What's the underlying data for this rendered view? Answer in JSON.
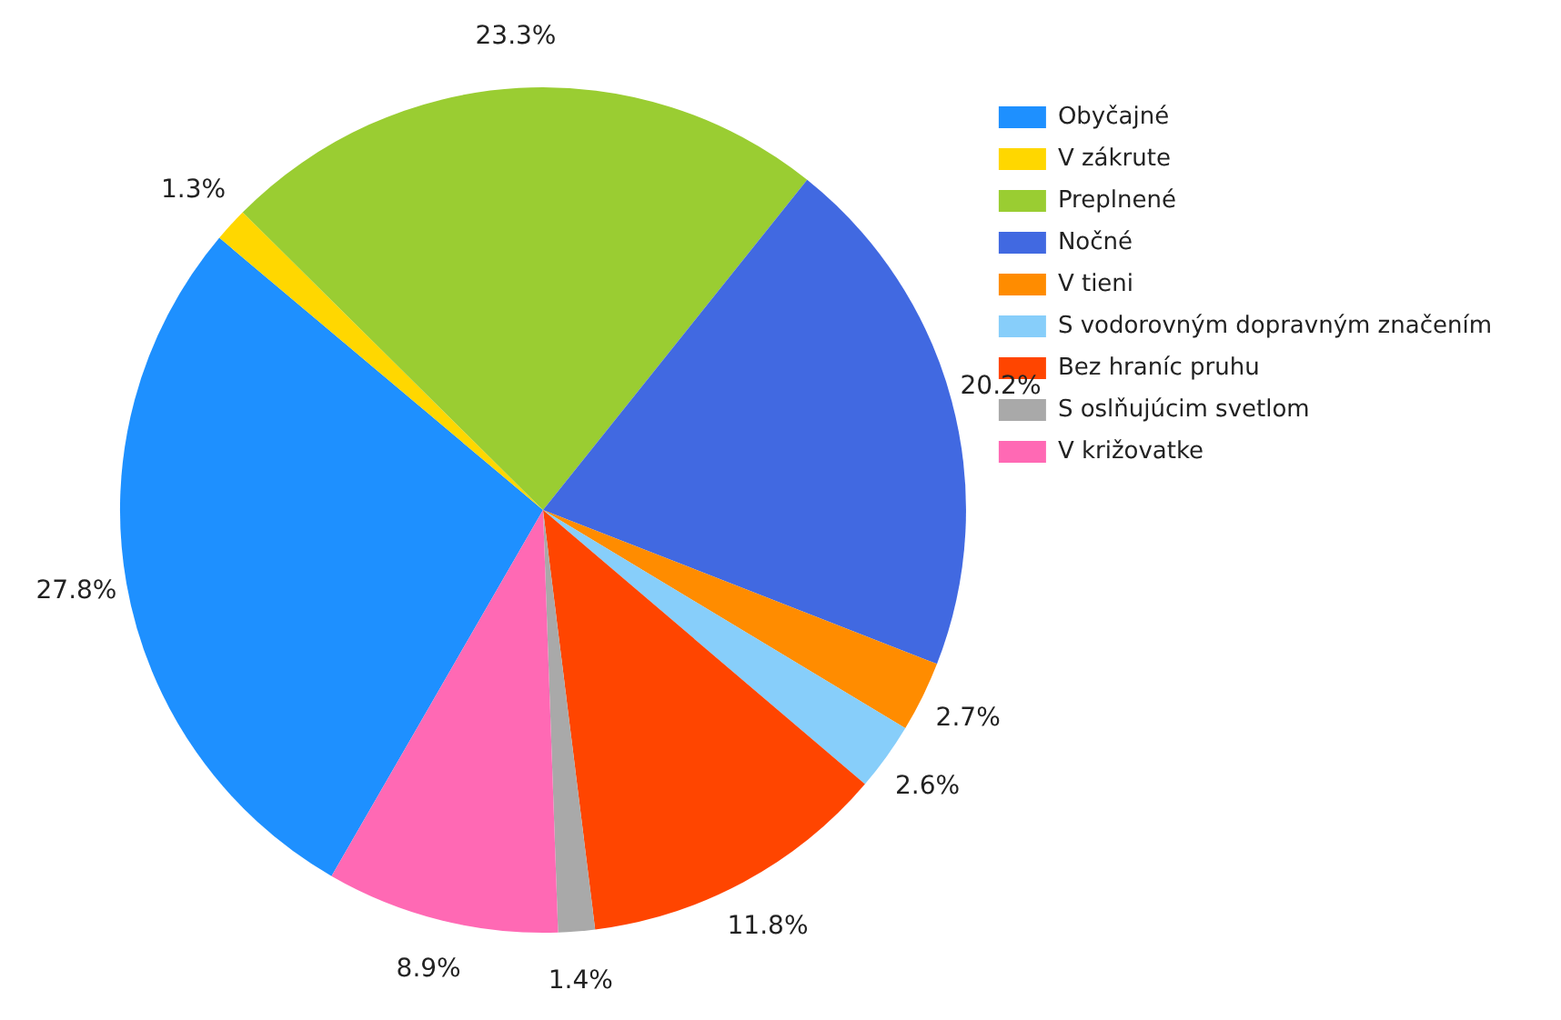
{
  "chart_data": {
    "type": "pie",
    "categories": [
      "Obyčajné",
      "V zákrute",
      "Preplnené",
      "Nočné",
      "V tieni",
      "S vodorovným dopravným značením",
      "Bez hraníc pruhu",
      "S oslňujúcim svetlom",
      "V križovatke"
    ],
    "values": [
      27.8,
      1.3,
      23.3,
      20.2,
      2.7,
      2.6,
      11.8,
      1.4,
      8.9
    ],
    "colors": [
      "#1e90ff",
      "#ffd700",
      "#9acd32",
      "#4169e1",
      "#ff8c00",
      "#87cefa",
      "#ff4500",
      "#a9a9a9",
      "#ff69b4"
    ],
    "value_labels": [
      "27.8%",
      "1.3%",
      "23.3%",
      "20.2%",
      "2.7%",
      "2.6%",
      "11.8%",
      "1.4%",
      "8.9%"
    ],
    "legend": "top right"
  }
}
